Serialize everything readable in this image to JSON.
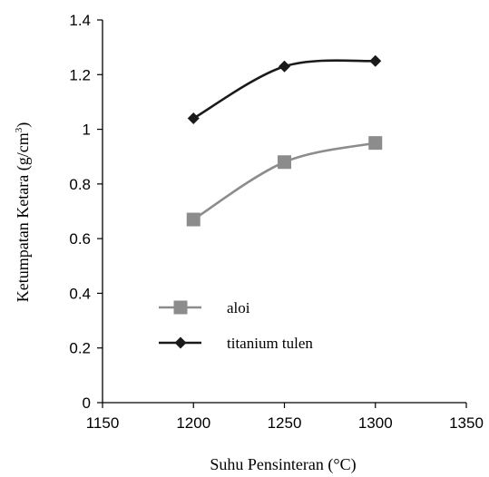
{
  "chart_data": {
    "type": "line",
    "xlabel": "Suhu Pensinteran (°C)",
    "ylabel_main": "Ketumpatan Ketara (g/cm",
    "ylabel_sup": "3",
    "ylabel_close": ")",
    "xlim": [
      1150,
      1350
    ],
    "ylim": [
      0,
      1.4
    ],
    "x_ticks": [
      "1150",
      "1200",
      "1250",
      "1300",
      "1350"
    ],
    "y_ticks": [
      "0",
      "0.2",
      "0.4",
      "0.6",
      "0.8",
      "1",
      "1.2",
      "1.4"
    ],
    "grid": false,
    "legend_position": "lower-left",
    "series": [
      {
        "name": "aloi",
        "color": "#8c8c8c",
        "marker": "square",
        "x": [
          1200,
          1250,
          1300
        ],
        "y": [
          0.67,
          0.88,
          0.95
        ]
      },
      {
        "name": "titanium tulen",
        "color": "#1a1a1a",
        "marker": "diamond",
        "x": [
          1200,
          1250,
          1300
        ],
        "y": [
          1.04,
          1.23,
          1.25
        ]
      }
    ]
  }
}
